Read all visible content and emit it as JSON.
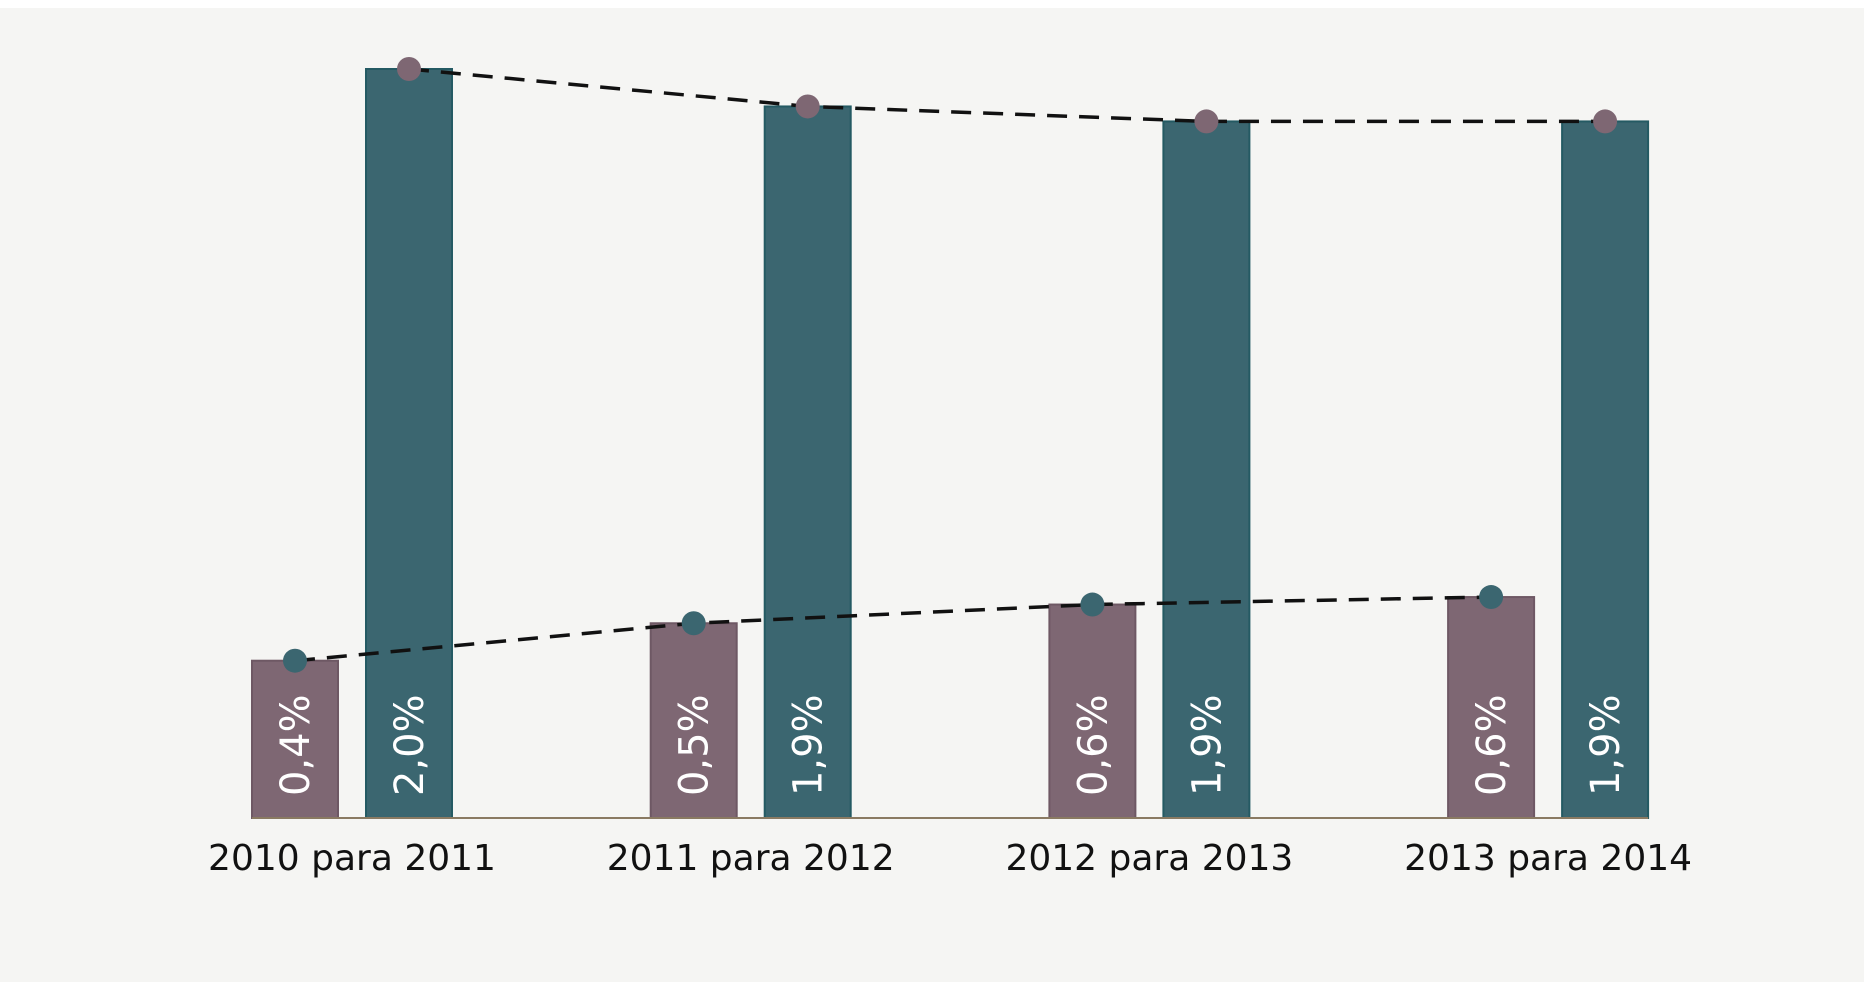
{
  "chart_data": {
    "type": "bar",
    "categories": [
      "2010 para 2011",
      "2011 para 2012",
      "2012 para 2013",
      "2013 para 2014"
    ],
    "series": [
      {
        "color": "#7e6773",
        "values": [
          0.42,
          0.52,
          0.57,
          0.59
        ],
        "value_labels": [
          "0,4%",
          "0,5%",
          "0,6%",
          "0,6%"
        ]
      },
      {
        "color": "#3b6670",
        "values": [
          2.0,
          1.9,
          1.86,
          1.86
        ],
        "value_labels": [
          "2,0%",
          "1,9%",
          "1,9%",
          "1,9%"
        ]
      }
    ],
    "ylim": [
      0,
      2.0
    ],
    "trend_lines": true
  }
}
